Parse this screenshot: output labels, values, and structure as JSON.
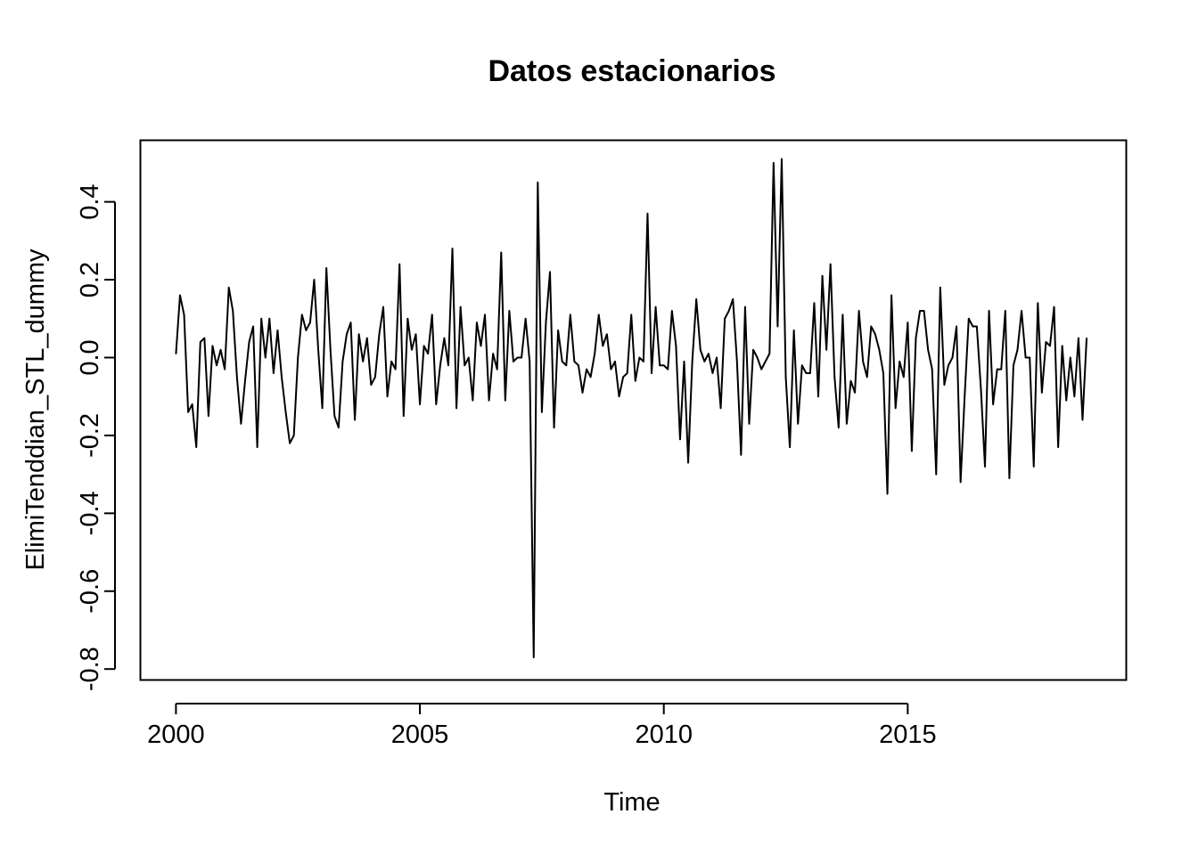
{
  "chart_data": {
    "type": "line",
    "title": "Datos estacionarios",
    "xlabel": "Time",
    "ylabel": "ElimiTenddian_STL_dummy",
    "xlim": [
      1999.28,
      2019.47
    ],
    "ylim": [
      -0.827,
      0.557
    ],
    "xticks": [
      2000,
      2005,
      2010,
      2015
    ],
    "xtick_labels": [
      "2000",
      "2005",
      "2010",
      "2015"
    ],
    "yticks": [
      -0.8,
      -0.6,
      -0.4,
      -0.2,
      0.0,
      0.2,
      0.4
    ],
    "ytick_labels": [
      "-0.8",
      "-0.6",
      "-0.4",
      "-0.2",
      "0.0",
      "0.2",
      "0.4"
    ],
    "grid": false,
    "series": [
      {
        "x_start": 2000,
        "frequency": 12,
        "color": "#000000",
        "values": [
          0.01,
          0.16,
          0.11,
          -0.14,
          -0.12,
          -0.23,
          0.04,
          0.05,
          -0.15,
          0.03,
          -0.02,
          0.02,
          -0.03,
          0.18,
          0.12,
          -0.05,
          -0.17,
          -0.06,
          0.04,
          0.08,
          -0.23,
          0.1,
          0.0,
          0.1,
          -0.04,
          0.07,
          -0.05,
          -0.14,
          -0.22,
          -0.2,
          0.0,
          0.11,
          0.07,
          0.09,
          0.2,
          0.02,
          -0.13,
          0.23,
          0.02,
          -0.15,
          -0.18,
          -0.01,
          0.06,
          0.09,
          -0.16,
          0.06,
          -0.01,
          0.05,
          -0.07,
          -0.05,
          0.06,
          0.13,
          -0.1,
          -0.01,
          -0.03,
          0.24,
          -0.15,
          0.1,
          0.02,
          0.06,
          -0.12,
          0.03,
          0.01,
          0.11,
          -0.12,
          -0.02,
          0.05,
          -0.02,
          0.28,
          -0.13,
          0.13,
          -0.02,
          0.0,
          -0.11,
          0.09,
          0.03,
          0.11,
          -0.11,
          0.01,
          -0.03,
          0.27,
          -0.11,
          0.12,
          -0.01,
          0.0,
          0.0,
          0.1,
          -0.01,
          -0.77,
          0.45,
          -0.14,
          0.09,
          0.22,
          -0.18,
          0.07,
          -0.01,
          -0.02,
          0.11,
          -0.01,
          -0.02,
          -0.09,
          -0.03,
          -0.05,
          0.01,
          0.11,
          0.03,
          0.06,
          -0.03,
          -0.01,
          -0.1,
          -0.05,
          -0.04,
          0.11,
          -0.06,
          0.0,
          -0.01,
          0.37,
          -0.04,
          0.13,
          -0.02,
          -0.02,
          -0.03,
          0.12,
          0.03,
          -0.21,
          -0.01,
          -0.27,
          -0.01,
          0.15,
          0.02,
          -0.01,
          0.01,
          -0.04,
          0.0,
          -0.13,
          0.1,
          0.12,
          0.15,
          -0.01,
          -0.25,
          0.13,
          -0.17,
          0.02,
          0.0,
          -0.03,
          -0.01,
          0.01,
          0.5,
          0.08,
          0.51,
          -0.05,
          -0.23,
          0.07,
          -0.17,
          -0.02,
          -0.04,
          -0.04,
          0.14,
          -0.1,
          0.21,
          0.02,
          0.24,
          -0.05,
          -0.18,
          0.11,
          -0.17,
          -0.06,
          -0.09,
          0.12,
          -0.01,
          -0.05,
          0.08,
          0.06,
          0.02,
          -0.04,
          -0.35,
          0.16,
          -0.13,
          -0.01,
          -0.05,
          0.09,
          -0.24,
          0.05,
          0.12,
          0.12,
          0.02,
          -0.03,
          -0.3,
          0.18,
          -0.07,
          -0.02,
          0.0,
          0.08,
          -0.32,
          -0.1,
          0.1,
          0.08,
          0.08,
          -0.08,
          -0.28,
          0.12,
          -0.12,
          -0.03,
          -0.03,
          0.12,
          -0.31,
          -0.02,
          0.02,
          0.12,
          0.0,
          0.0,
          -0.28,
          0.14,
          -0.09,
          0.04,
          0.03,
          0.13,
          -0.23,
          0.03,
          -0.11,
          0.0,
          -0.1,
          0.05,
          -0.16,
          0.05
        ]
      }
    ]
  }
}
